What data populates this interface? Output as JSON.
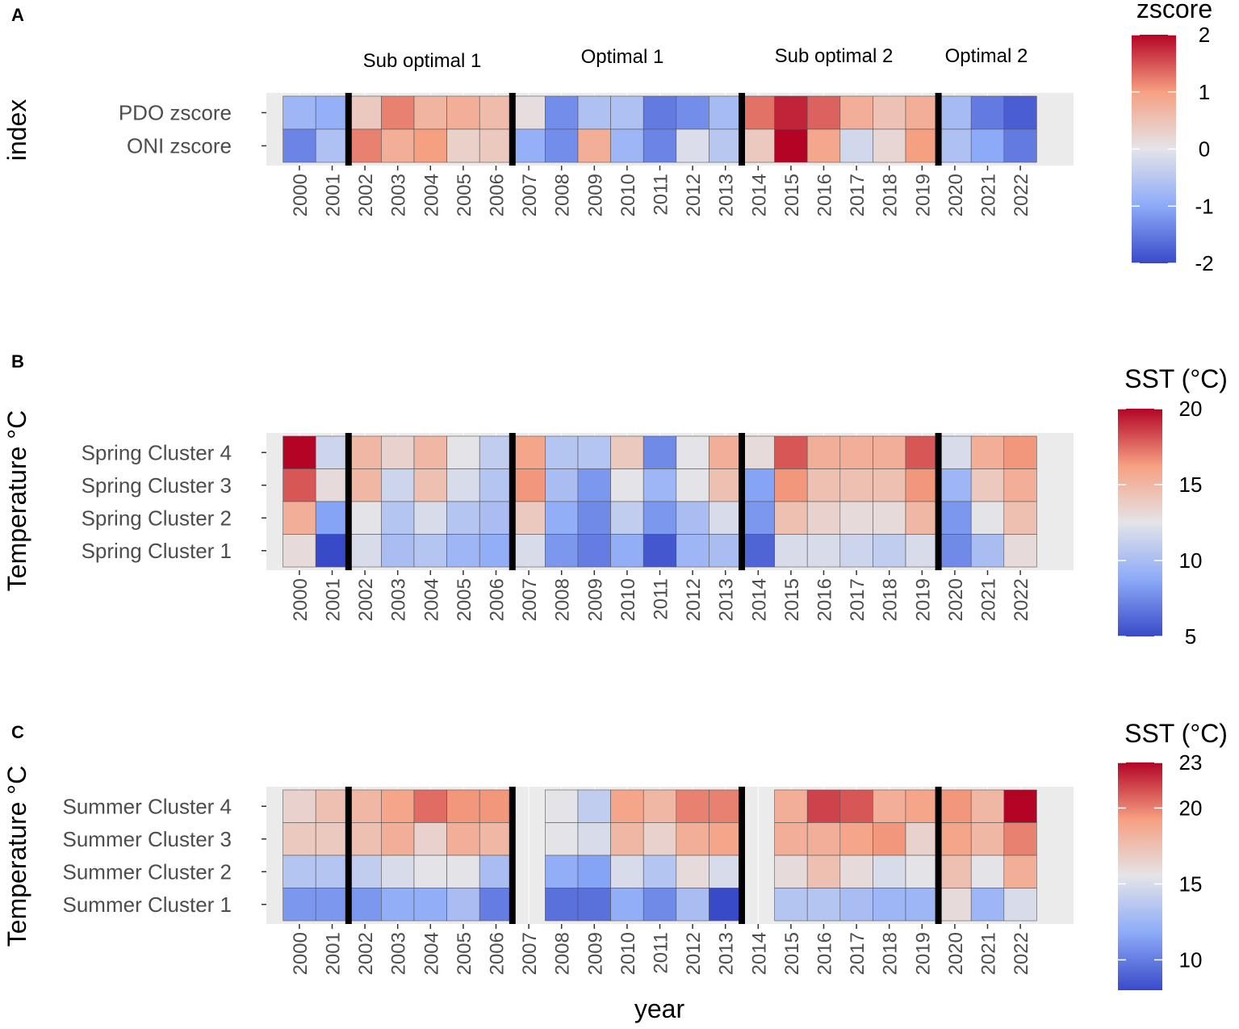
{
  "phases": [
    "Sub optimal 1",
    "Optimal 1",
    "Sub optimal 2",
    "Optimal 2"
  ],
  "phase_boundaries_after_year": [
    2001,
    2006,
    2013,
    2019
  ],
  "x_axis_title": "year",
  "chart_data": [
    {
      "panel": "A",
      "type": "heatmap",
      "ylabel": "index",
      "xlabel": "year",
      "years": [
        2000,
        2001,
        2002,
        2003,
        2004,
        2005,
        2006,
        2007,
        2008,
        2009,
        2010,
        2011,
        2012,
        2013,
        2014,
        2015,
        2016,
        2017,
        2018,
        2019,
        2020,
        2021,
        2022
      ],
      "rows": [
        "PDO zscore",
        "ONI zscore"
      ],
      "values": [
        [
          -0.8,
          -0.9,
          0.4,
          1.2,
          0.7,
          0.8,
          0.6,
          0.1,
          -1.3,
          -0.6,
          -0.6,
          -1.5,
          -1.3,
          -0.7,
          1.3,
          1.8,
          1.4,
          0.8,
          0.5,
          0.8,
          -0.7,
          -1.5,
          -1.8
        ],
        [
          -1.4,
          -0.6,
          1.2,
          0.8,
          1.0,
          0.3,
          0.4,
          -0.9,
          -1.3,
          0.8,
          -0.8,
          -1.4,
          -0.1,
          -0.5,
          0.4,
          2.0,
          0.9,
          -0.2,
          0.2,
          1.0,
          -0.6,
          -1.0,
          -1.5
        ]
      ],
      "legend": {
        "title": "zscore",
        "min": -2,
        "max": 2,
        "ticks": [
          2,
          1,
          0,
          -1,
          -2
        ]
      }
    },
    {
      "panel": "B",
      "type": "heatmap",
      "ylabel": "Temperature °C",
      "xlabel": "year",
      "years": [
        2000,
        2001,
        2002,
        2003,
        2004,
        2005,
        2006,
        2007,
        2008,
        2009,
        2010,
        2011,
        2012,
        2013,
        2014,
        2015,
        2016,
        2017,
        2018,
        2019,
        2020,
        2021,
        2022
      ],
      "rows": [
        "Spring Cluster  4",
        "Spring Cluster  3",
        "Spring Cluster  2",
        "Spring Cluster  1"
      ],
      "values": [
        [
          20,
          11.5,
          15,
          13.5,
          15,
          12.5,
          11,
          16,
          10.5,
          10.5,
          14,
          7.5,
          12.5,
          15.5,
          13,
          18,
          15.5,
          15.5,
          15.5,
          18,
          12,
          15.5,
          16.5
        ],
        [
          18,
          13,
          15,
          11.5,
          14.5,
          12,
          10.5,
          16.5,
          10,
          8,
          12.5,
          9.5,
          12.5,
          14.5,
          8.5,
          16.5,
          14.5,
          14.5,
          14.5,
          16.5,
          9.5,
          14,
          15.5
        ],
        [
          15.5,
          8.5,
          12.5,
          10.5,
          12,
          10.5,
          10,
          14,
          9,
          7.5,
          11,
          8,
          10,
          12,
          8,
          14.5,
          13.5,
          13,
          13,
          15,
          8,
          12.5,
          14.5
        ],
        [
          13,
          5,
          12,
          10,
          10.5,
          9.5,
          9,
          12,
          8,
          7,
          9,
          5.5,
          9.5,
          10,
          6,
          12,
          12,
          11.5,
          11,
          12,
          7.5,
          10,
          13
        ]
      ],
      "legend": {
        "title": "SST (°C)",
        "min": 5,
        "max": 20,
        "ticks": [
          20,
          15,
          10,
          5
        ]
      }
    },
    {
      "panel": "C",
      "type": "heatmap",
      "ylabel": "Temperature °C",
      "xlabel": "year",
      "years": [
        2000,
        2001,
        2002,
        2003,
        2004,
        2005,
        2006,
        2007,
        2008,
        2009,
        2010,
        2011,
        2012,
        2013,
        2014,
        2015,
        2016,
        2017,
        2018,
        2019,
        2020,
        2021,
        2022
      ],
      "rows": [
        "Summer Cluster  4",
        "Summer Cluster  3",
        "Summer Cluster  2",
        "Summer Cluster  1"
      ],
      "values": [
        [
          16.5,
          17.5,
          18,
          19,
          20.5,
          19.5,
          19.5,
          null,
          15.5,
          14,
          19,
          18,
          20,
          20,
          null,
          18.5,
          21.5,
          21,
          18.5,
          19,
          19.5,
          18,
          23
        ],
        [
          17,
          17,
          17.5,
          18.5,
          16.5,
          18.5,
          18,
          null,
          15.5,
          15,
          18,
          16.5,
          18.5,
          19,
          null,
          18.5,
          18.5,
          19,
          19.5,
          16.5,
          19,
          18,
          20
        ],
        [
          13.5,
          13.5,
          14,
          15,
          15.5,
          15.5,
          13,
          null,
          12,
          11.5,
          15,
          13.5,
          16,
          15,
          null,
          16,
          17.5,
          16,
          15,
          15.5,
          17.5,
          15.5,
          18.5
        ],
        [
          11,
          11,
          11,
          12,
          12,
          13,
          10,
          null,
          9.5,
          9.5,
          12,
          10.5,
          13,
          8,
          null,
          13.5,
          13.5,
          13,
          12.5,
          12.5,
          16,
          12.5,
          15
        ]
      ],
      "legend": {
        "title": "SST (°C)",
        "min": 8,
        "max": 23,
        "ticks": [
          23,
          20,
          15,
          10
        ]
      }
    }
  ]
}
